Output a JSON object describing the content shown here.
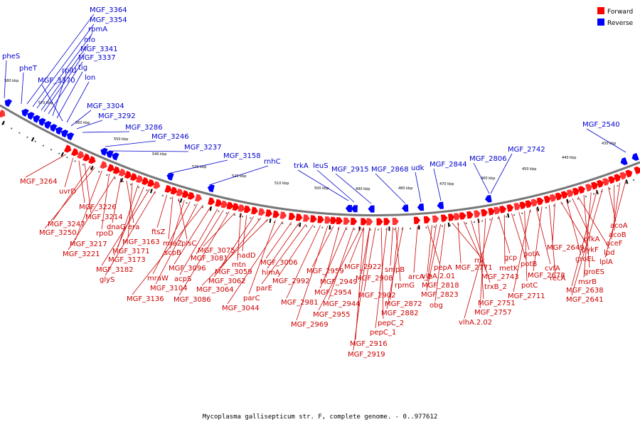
{
  "caption": "Mycoplasma gallisepticum str. F, complete genome. - 0..977612",
  "legend": {
    "forward": {
      "label": "Forward",
      "color": "#ff0000"
    },
    "reverse": {
      "label": "Reverse",
      "color": "#0000ff"
    }
  },
  "kbp_ticks": [
    "580 kbp",
    "570 kbp",
    "560 kbp",
    "550 kbp",
    "540 kbp",
    "530 kbp",
    "520 kbp",
    "510 kbp",
    "500 kbp",
    "490 kbp",
    "480 kbp",
    "470 kbp",
    "460 kbp",
    "450 kbp",
    "440 kbp",
    "430 kbp"
  ],
  "reverse_labels": [
    "pheS",
    "pheT",
    "MGF_3364",
    "MGF_3354",
    "rpmA",
    "nfo",
    "MGF_3341",
    "MGF_3337",
    "rplU",
    "tig",
    "MGF_3370",
    "lon",
    "MGF_3304",
    "MGF_3292",
    "MGF_3286",
    "MGF_3246",
    "MGF_3237",
    "MGF_3158",
    "rnhC",
    "trkA",
    "leuS",
    "MGF_2915",
    "MGF_2868",
    "udk",
    "MGF_2844",
    "MGF_2806",
    "MGF_2742",
    "MGF_2540"
  ],
  "forward_labels": [
    "MGF_3264",
    "uvrD",
    "MGF_3226",
    "MGF_3214",
    "MGF_3247",
    "MGF_3250",
    "MGF_3217",
    "rpoD",
    "MGF_3221",
    "dnaG",
    "era",
    "MGF_3163",
    "MGF_3171",
    "MGF_3173",
    "MGF_3182",
    "glyS",
    "ftsZ",
    "mraZ",
    "plsC",
    "scpB",
    "mraW",
    "MGF_3104",
    "MGF_3136",
    "MGF_3096",
    "acpS",
    "MGF_3081",
    "MGF_3086",
    "MGF_3075",
    "mtn",
    "nadD",
    "MGF_3059",
    "MGF_3062",
    "MGF_3064",
    "parC",
    "MGF_3044",
    "MGF_3006",
    "himA",
    "parE",
    "MGF_2992",
    "MGF_2981",
    "MGF_2969",
    "MGF_2959",
    "MGF_2949",
    "MGF_2954",
    "MGF_2944",
    "MGF_2955",
    "MGF_2922",
    "MGF_2908",
    "MGF_2902",
    "pepC_2",
    "pepC_1",
    "MGF_2916",
    "MGF_2919",
    "smpB",
    "rpmG",
    "MGF_2872",
    "MGF_2882",
    "arcA_2",
    "pepA",
    "vlhA.2.01",
    "MGF_2818",
    "MGF_2823",
    "obg",
    "rnr",
    "MGF_2771",
    "MGF_2743",
    "trxB_2",
    "MGF_2751",
    "MGF_2757",
    "vlhA.2.02",
    "gcp",
    "metK",
    "potB",
    "potA",
    "potC",
    "MGF_2711",
    "cvfA",
    "MGF_2678",
    "recA",
    "MGF_2649",
    "pykF",
    "groEL",
    "pfkA",
    "lpd",
    "groES",
    "msrB",
    "MGF_2638",
    "MGF_2641",
    "acoA",
    "acoB",
    "aceF",
    "lplA"
  ]
}
